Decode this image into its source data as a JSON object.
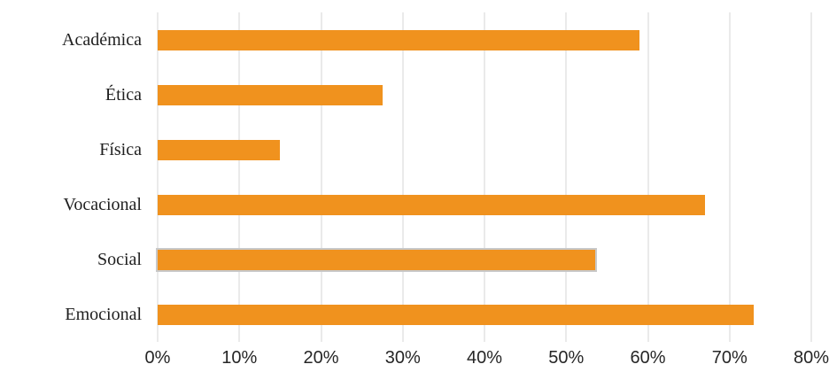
{
  "chart_data": {
    "type": "bar",
    "orientation": "horizontal",
    "title": "",
    "xlabel": "",
    "ylabel": "",
    "categories": [
      "Académica",
      "Ética",
      "Física",
      "Vocacional",
      "Social",
      "Emocional"
    ],
    "values": [
      59,
      27.5,
      15,
      67,
      53.5,
      73
    ],
    "unit": "%",
    "xlim": [
      0,
      80
    ],
    "x_tick_labels": [
      "0%",
      "10%",
      "20%",
      "30%",
      "40%",
      "50%",
      "60%",
      "70%",
      "80%"
    ],
    "grid": "vertical",
    "legend": "none",
    "highlighted_category": "Social",
    "colors": {
      "bar": "#F0921E",
      "highlight_outline": "#C8C8C8",
      "gridline": "#D6D6D6",
      "category_label_text": "#1F1F1F",
      "tick_label_text": "#262626",
      "background": "#FFFFFF"
    }
  }
}
